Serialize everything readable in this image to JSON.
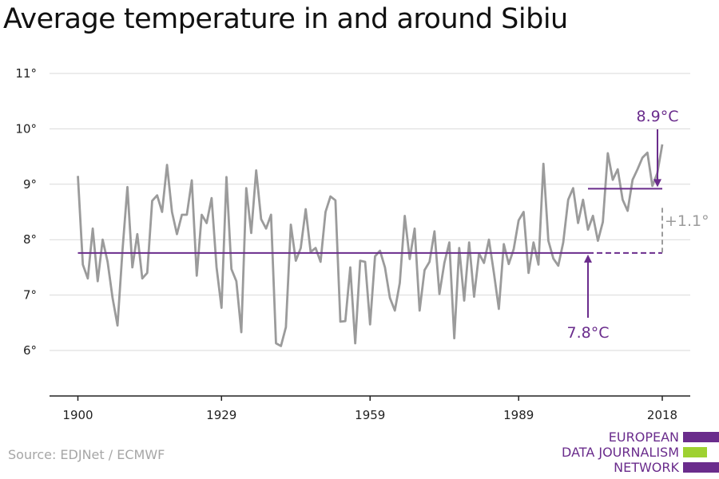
{
  "chart_data": {
    "type": "line",
    "title": "Average temperature in and around Sibiu",
    "xlabel": "",
    "ylabel": "",
    "xlim": [
      1900,
      2018
    ],
    "ylim": [
      5,
      11
    ],
    "x_ticks": [
      1900,
      1929,
      1959,
      1989,
      2018
    ],
    "y_ticks": [
      6,
      7,
      8,
      9,
      10,
      11
    ],
    "y_tick_suffix": "°",
    "grid": "horizontal",
    "series": [
      {
        "color": "#9b9b9b",
        "x": [
          1900,
          1901,
          1902,
          1903,
          1904,
          1905,
          1906,
          1907,
          1908,
          1909,
          1910,
          1911,
          1912,
          1913,
          1914,
          1915,
          1916,
          1917,
          1918,
          1919,
          1920,
          1921,
          1922,
          1923,
          1924,
          1925,
          1926,
          1927,
          1928,
          1929,
          1930,
          1931,
          1932,
          1933,
          1934,
          1935,
          1936,
          1937,
          1938,
          1939,
          1940,
          1941,
          1942,
          1943,
          1944,
          1945,
          1946,
          1947,
          1948,
          1949,
          1950,
          1951,
          1952,
          1953,
          1954,
          1955,
          1956,
          1957,
          1958,
          1959,
          1960,
          1961,
          1962,
          1963,
          1964,
          1965,
          1966,
          1967,
          1968,
          1969,
          1970,
          1971,
          1972,
          1973,
          1974,
          1975,
          1976,
          1977,
          1978,
          1979,
          1980,
          1981,
          1982,
          1983,
          1984,
          1985,
          1986,
          1987,
          1988,
          1989,
          1990,
          1991,
          1992,
          1993,
          1994,
          1995,
          1996,
          1997,
          1998,
          1999,
          2000,
          2001,
          2002,
          2003,
          2004,
          2005,
          2006,
          2007,
          2008,
          2009,
          2010,
          2011,
          2012,
          2013,
          2014,
          2015,
          2016,
          2017,
          2018
        ],
        "values": [
          9.15,
          7.55,
          7.3,
          8.2,
          7.25,
          8.0,
          7.6,
          6.95,
          6.45,
          7.8,
          8.95,
          7.5,
          8.1,
          7.3,
          7.4,
          8.7,
          8.8,
          8.5,
          9.35,
          8.5,
          8.1,
          8.45,
          8.45,
          9.07,
          7.35,
          8.45,
          8.3,
          8.75,
          7.5,
          6.77,
          9.13,
          7.47,
          7.25,
          6.33,
          8.93,
          8.12,
          9.25,
          8.37,
          8.2,
          8.45,
          6.13,
          6.08,
          6.42,
          8.27,
          7.62,
          7.85,
          8.55,
          7.78,
          7.85,
          7.6,
          8.5,
          8.78,
          8.71,
          6.52,
          6.53,
          7.5,
          6.13,
          7.62,
          7.6,
          6.47,
          7.7,
          7.8,
          7.5,
          6.95,
          6.72,
          7.22,
          8.43,
          7.65,
          8.2,
          6.72,
          7.45,
          7.6,
          8.15,
          7.02,
          7.58,
          7.95,
          6.22,
          7.85,
          6.9,
          7.95,
          6.97,
          7.75,
          7.58,
          8.0,
          7.4,
          6.75,
          7.92,
          7.56,
          7.83,
          8.35,
          8.5,
          7.4,
          7.95,
          7.55,
          9.37,
          7.98,
          7.66,
          7.53,
          7.95,
          8.72,
          8.93,
          8.3,
          8.72,
          8.18,
          8.43,
          7.98,
          8.32,
          9.56,
          9.08,
          9.27,
          8.72,
          8.52,
          9.08,
          9.27,
          9.48,
          9.57,
          8.97,
          9.2,
          9.72
        ]
      }
    ],
    "reference_lines": [
      {
        "label": "7.8°C",
        "value": 7.76,
        "x_start": 1900,
        "x_end": 2018,
        "color": "#6a2c8c",
        "dashed_from": 2003
      },
      {
        "label": "8.9°C",
        "value": 8.92,
        "x_start": 2003,
        "x_end": 2018,
        "color": "#6a2c8c"
      }
    ],
    "difference_label": "+1.1°"
  },
  "source": "Source: EDJNet / ECMWF",
  "brand": {
    "lines": [
      "EUROPEAN",
      "DATA JOURNALISM",
      "NETWORK"
    ],
    "colors": {
      "purple": "#6a2c8c",
      "green": "#9ed131"
    }
  }
}
